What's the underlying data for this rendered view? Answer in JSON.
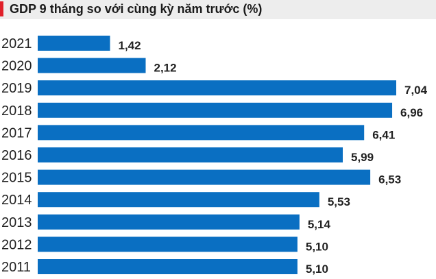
{
  "chart_data": {
    "type": "bar",
    "orientation": "horizontal",
    "title": "GDP 9 tháng so với cùng kỳ năm trước (%)",
    "categories": [
      "2021",
      "2020",
      "2019",
      "2018",
      "2017",
      "2016",
      "2015",
      "2014",
      "2013",
      "2012",
      "2011"
    ],
    "values": [
      1.42,
      2.12,
      7.04,
      6.96,
      6.41,
      5.99,
      6.53,
      5.53,
      5.14,
      5.1,
      5.1
    ],
    "data_labels": [
      "1,42",
      "2,12",
      "7,04",
      "6,96",
      "6,41",
      "5,99",
      "6,53",
      "5,53",
      "5,14",
      "5,10",
      "5,10"
    ],
    "xlabel": "",
    "ylabel": "",
    "xlim": [
      0,
      7.04
    ],
    "grid": false,
    "colors": {
      "bar": "#0a6fc2",
      "accent": "#e0202a",
      "title_bg": "#ededed"
    }
  }
}
